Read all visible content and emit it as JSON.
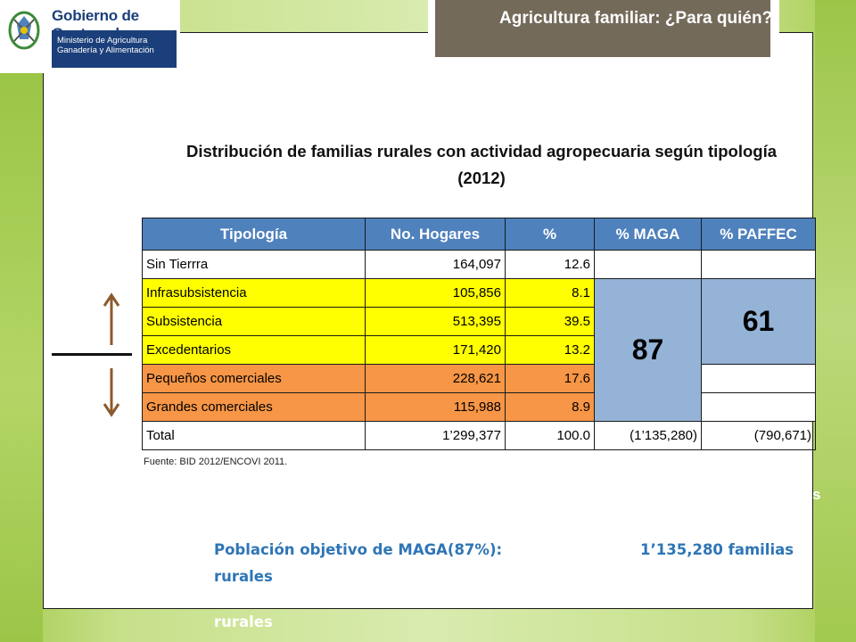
{
  "header": {
    "gov_name": "Gobierno de Guatemala",
    "ministry_line1": "Ministerio de Agricultura",
    "ministry_line2": "Ganadería y Alimentación",
    "title": "Agricultura familiar: ¿Para quién?"
  },
  "chart_title": "Distribución de familias rurales con actividad agropecuaria según tipología (2012)",
  "table": {
    "headers": [
      "Tipología",
      "No. Hogares",
      "%",
      "% MAGA",
      "% PAFFEC"
    ],
    "rows": [
      {
        "label": "Sin Tierrra",
        "hogares": "164,097",
        "pct": "12.6"
      },
      {
        "label": "Infrasubsistencia",
        "hogares": "105,856",
        "pct": "8.1"
      },
      {
        "label": "Subsistencia",
        "hogares": "513,395",
        "pct": "39.5"
      },
      {
        "label": "Excedentarios",
        "hogares": "171,420",
        "pct": "13.2"
      },
      {
        "label": "Pequeños comerciales",
        "hogares": "228,621",
        "pct": "17.6"
      },
      {
        "label": "Grandes comerciales",
        "hogares": "115,988",
        "pct": "8.9"
      }
    ],
    "total": {
      "label": "Total",
      "hogares": "1’299,377",
      "pct": "100.0",
      "maga": "(1’135,280)",
      "paffec": "(790,671)"
    },
    "maga_merged": "87",
    "paffec_merged": "61"
  },
  "source": "Fuente:  BID 2012/ENCOVI 2011.",
  "fragment_s": "s",
  "population": {
    "label": "Población objetivo de MAGA(87%):",
    "value": "1’135,280 familias",
    "suffix": "rurales",
    "repeat_suffix": "rurales"
  },
  "colors": {
    "header_blue": "#4f81bd",
    "merge_blue": "#95b3d7",
    "yellow": "#ffff00",
    "orange": "#f79646",
    "accent_text": "#2e75b6",
    "title_box": "#736a5a"
  }
}
